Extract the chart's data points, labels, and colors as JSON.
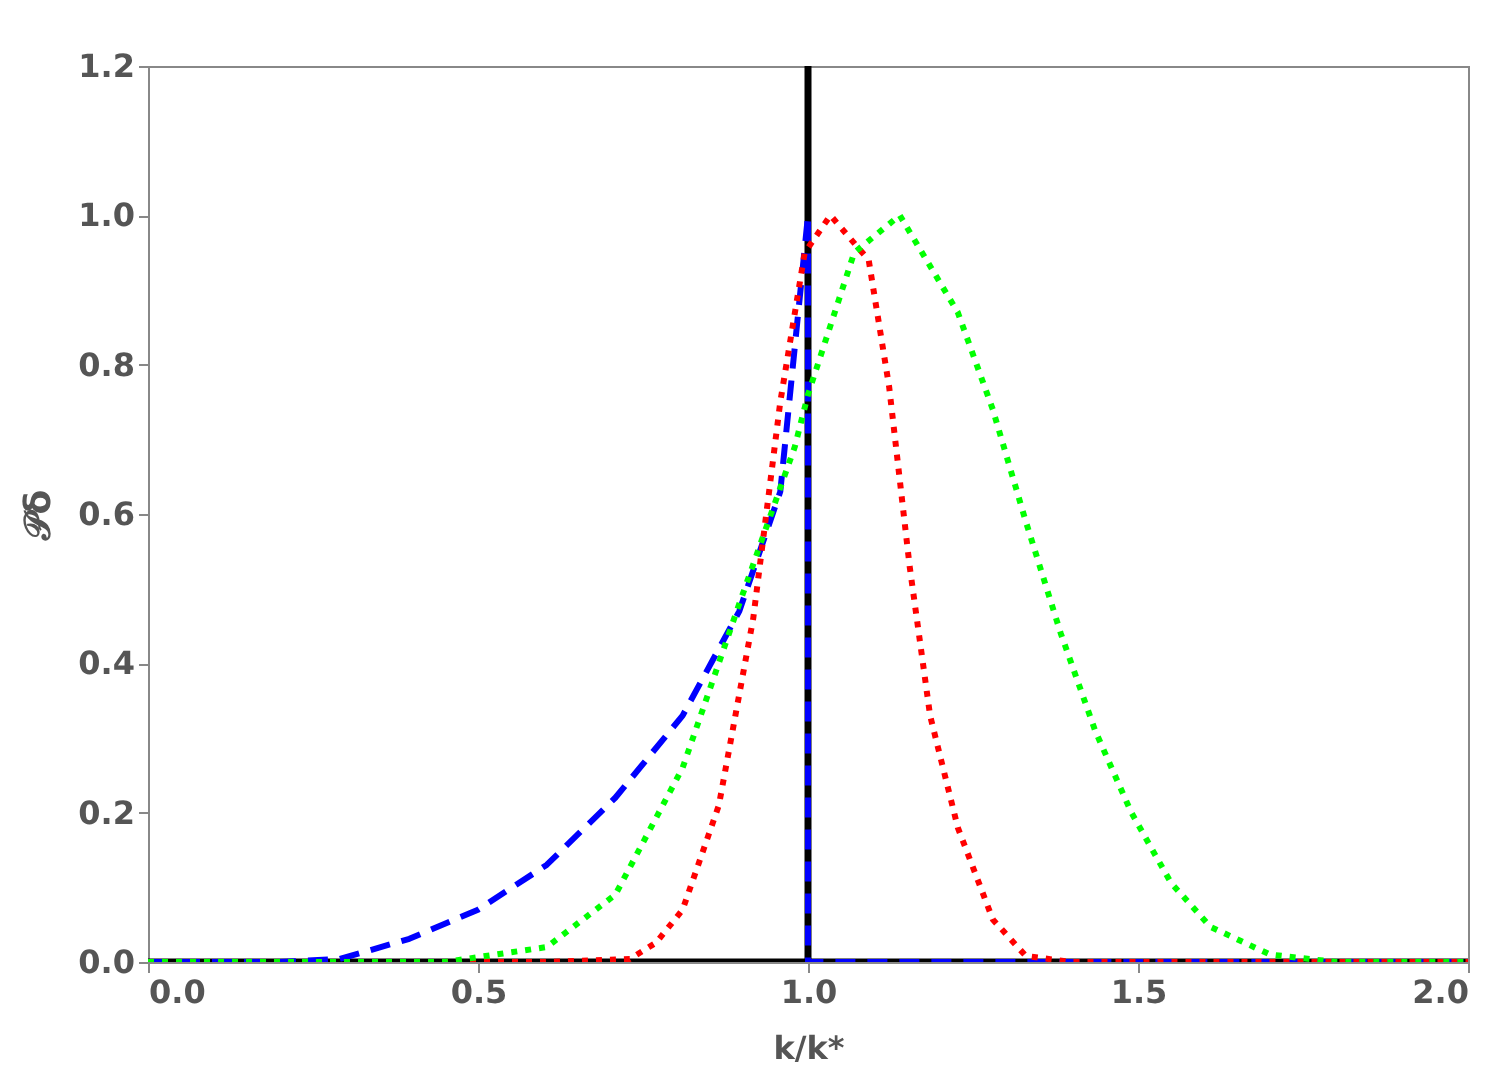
{
  "chart_data": {
    "type": "line",
    "xlabel": "k/k*",
    "ylabel": "𝒫δ",
    "xlim": [
      0,
      2
    ],
    "ylim": [
      0,
      1.2
    ],
    "xticks": [
      {
        "value": 0,
        "label": "0.0"
      },
      0.5,
      {
        "value": 1,
        "label": "1.0"
      },
      1.5,
      {
        "value": 2,
        "label": "2.0"
      }
    ],
    "yticks": [
      {
        "value": 0,
        "label": "0.0"
      },
      0.2,
      0.4,
      0.6,
      0.8,
      {
        "value": 1,
        "label": "1.0"
      },
      1.2
    ],
    "grid": false,
    "marker": "none",
    "series": [
      {
        "color": "#000000",
        "line_style": "solid",
        "x": [
          0,
          1,
          1,
          1,
          2
        ],
        "values": [
          0,
          0,
          1.2,
          0,
          0
        ]
      },
      {
        "color": "#0000ff",
        "line_style": "dashed",
        "x": [
          0,
          0.2,
          0.29,
          0.396,
          0.5,
          0.604,
          0.708,
          0.81,
          0.896,
          0.958,
          1,
          1,
          1.5,
          2
        ],
        "values": [
          0,
          0,
          0.004,
          0.031,
          0.07,
          0.13,
          0.22,
          0.33,
          0.47,
          0.63,
          1,
          0,
          0,
          0
        ]
      },
      {
        "color": "#ff0000",
        "line_style": "dotted",
        "x": [
          0,
          0.6,
          0.73,
          0.77,
          0.81,
          0.865,
          0.917,
          0.958,
          0.995,
          1.034,
          1.092,
          1.123,
          1.154,
          1.185,
          1.227,
          1.28,
          1.33,
          1.4,
          2
        ],
        "values": [
          0,
          0,
          0.004,
          0.026,
          0.07,
          0.21,
          0.46,
          0.75,
          0.95,
          1,
          0.94,
          0.77,
          0.53,
          0.33,
          0.18,
          0.057,
          0.008,
          0,
          0
        ]
      },
      {
        "color": "#00ff00",
        "line_style": "dotted",
        "x": [
          0,
          0.45,
          0.604,
          0.708,
          0.81,
          0.896,
          0.98,
          1,
          1.07,
          1.139,
          1.227,
          1.28,
          1.33,
          1.383,
          1.435,
          1.49,
          1.55,
          1.61,
          1.7,
          1.8,
          2
        ],
        "values": [
          0,
          0,
          0.02,
          0.09,
          0.26,
          0.48,
          0.69,
          0.76,
          0.95,
          1,
          0.87,
          0.74,
          0.59,
          0.44,
          0.31,
          0.2,
          0.106,
          0.047,
          0.01,
          0,
          0
        ]
      }
    ]
  }
}
